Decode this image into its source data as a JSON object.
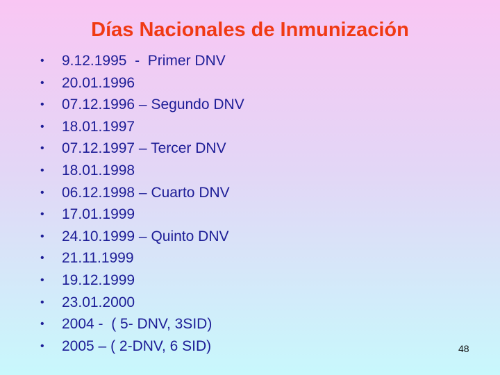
{
  "title": "Días Nacionales de Inmunización",
  "items": [
    "9.12.1995  -  Primer DNV",
    "20.01.1996",
    "07.12.1996 – Segundo DNV",
    "18.01.1997",
    "07.12.1997 – Tercer DNV",
    "18.01.1998",
    "06.12.1998 – Cuarto DNV",
    "17.01.1999",
    "24.10.1999 – Quinto DNV",
    "21.11.1999",
    "19.12.1999",
    "23.01.2000",
    "2004 -  ( 5- DNV, 3SID)",
    "2005 – ( 2-DNV, 6 SID)"
  ],
  "bullet": "•",
  "page_number": "48",
  "colors": {
    "title": "#f03a14",
    "text": "#1c1c96",
    "bg_top": "#f9c6f3",
    "bg_bottom": "#c8f8fc"
  }
}
